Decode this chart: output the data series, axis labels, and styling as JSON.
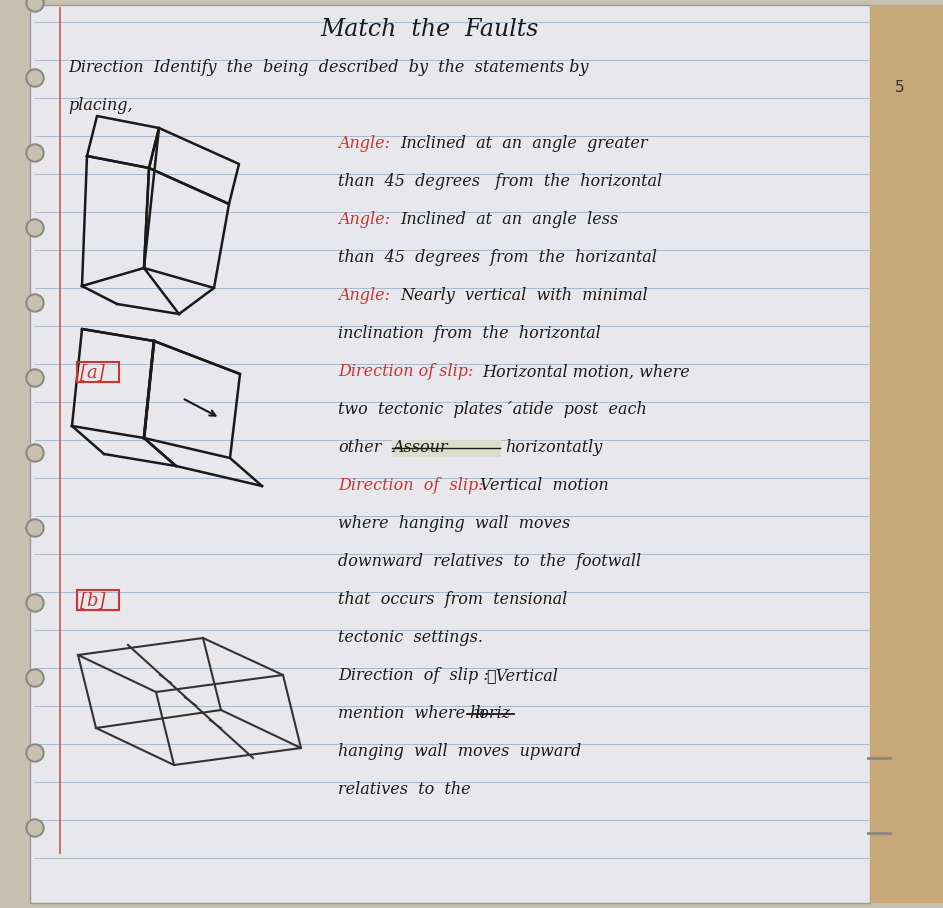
{
  "title": "Match  the  Faults",
  "bg_color": "#c8c0b0",
  "paper_color": "#e8e8ec",
  "line_color": "#aab8cc",
  "text_color": "#1a1a1a",
  "red_color": "#cc3333",
  "instructions_line1": "Direction  Identify  the  being  described  by  the  statements by",
  "instructions_line2": "placing,",
  "label_a": "[a]",
  "label_b": "[b]",
  "wood_color": "#c8a878",
  "hole_color": "#c8c0b0",
  "red_line_color": "#cc5555"
}
